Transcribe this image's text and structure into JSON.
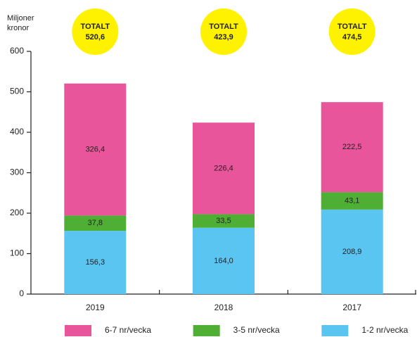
{
  "chart_data": {
    "type": "stacked_bar",
    "y_label": "Miljoner kronor",
    "categories": [
      "2019",
      "2018",
      "2017"
    ],
    "series": [
      {
        "name": "1-2 nr/vecka",
        "color": "#5bc5f2",
        "values": [
          156.3,
          164.0,
          208.9
        ],
        "value_labels": [
          "156,3",
          "164,0",
          "208,9"
        ]
      },
      {
        "name": "3-5 nr/vecka",
        "color": "#4fae34",
        "values": [
          37.8,
          33.5,
          43.1
        ],
        "value_labels": [
          "37,8",
          "33,5",
          "43,1"
        ]
      },
      {
        "name": "6-7 nr/vecka",
        "color": "#e8559a",
        "values": [
          326.4,
          226.4,
          222.5
        ],
        "value_labels": [
          "326,4",
          "226,4",
          "222,5"
        ]
      }
    ],
    "totals": {
      "label": "TOTALT",
      "color": "#fff200",
      "values": [
        520.6,
        423.9,
        474.5
      ],
      "value_labels": [
        "520,6",
        "423,9",
        "474,5"
      ]
    },
    "ylim": [
      0,
      600
    ],
    "yticks": [
      0,
      100,
      200,
      300,
      400,
      500,
      600
    ]
  }
}
